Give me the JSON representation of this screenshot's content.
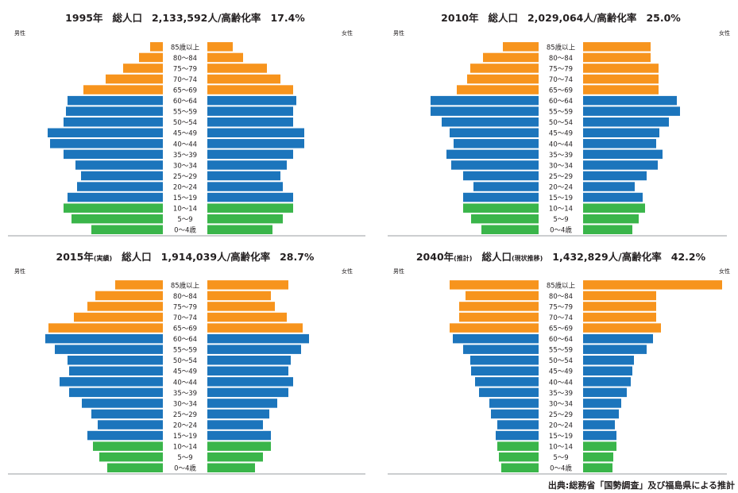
{
  "colors": {
    "elderly": "#f7941d",
    "working": "#1c75bc",
    "youth": "#3ab54a",
    "baseline": "#bcbec0",
    "text": "#231f20"
  },
  "age_groups": [
    "0〜4歳",
    "5〜9",
    "10〜14",
    "15〜19",
    "20〜24",
    "25〜29",
    "30〜34",
    "35〜39",
    "40〜44",
    "45〜49",
    "50〜54",
    "55〜59",
    "60〜64",
    "65〜69",
    "70〜74",
    "75〜79",
    "80〜84",
    "85歳以上"
  ],
  "source": "出典:総務省「国勢調査」及び福島県による推計",
  "chart_data": [
    {
      "type": "bar",
      "title_parts": [
        {
          "text": "1995年",
          "style": "title"
        },
        {
          "text": "総人口",
          "style": "title",
          "gap": 12
        },
        {
          "text": "2,133,592人/高齢化率",
          "style": "title",
          "gap": 12
        },
        {
          "text": "17.4%",
          "style": "title",
          "gap": 12
        }
      ],
      "male_label": "男性",
      "female_label": "女性",
      "categories": [
        "0〜4歳",
        "5〜9",
        "10〜14",
        "15〜19",
        "20〜24",
        "25〜29",
        "30〜34",
        "35〜39",
        "40〜44",
        "45〜49",
        "50〜54",
        "55〜59",
        "60〜64",
        "65〜69",
        "70〜74",
        "75〜79",
        "80〜84",
        "85歳以上"
      ],
      "series": [
        {
          "name": "男性",
          "values": [
            90,
            115,
            125,
            120,
            108,
            103,
            110,
            125,
            142,
            145,
            125,
            122,
            120,
            100,
            72,
            50,
            30,
            16
          ]
        },
        {
          "name": "女性",
          "values": [
            82,
            95,
            108,
            108,
            95,
            92,
            100,
            108,
            122,
            122,
            108,
            108,
            112,
            108,
            92,
            75,
            45,
            32
          ]
        }
      ]
    },
    {
      "type": "bar",
      "title_parts": [
        {
          "text": "2010年",
          "style": "title"
        },
        {
          "text": "総人口",
          "style": "title",
          "gap": 12
        },
        {
          "text": "2,029,064人/高齢化率",
          "style": "title",
          "gap": 12
        },
        {
          "text": "25.0%",
          "style": "title",
          "gap": 12
        }
      ],
      "male_label": "男性",
      "female_label": "女性",
      "categories": [
        "0〜4歳",
        "5〜9",
        "10〜14",
        "15〜19",
        "20〜24",
        "25〜29",
        "30〜34",
        "35〜39",
        "40〜44",
        "45〜49",
        "50〜54",
        "55〜59",
        "60〜64",
        "65〜69",
        "70〜74",
        "75〜79",
        "80〜84",
        "85歳以上"
      ],
      "series": [
        {
          "name": "男性",
          "values": [
            72,
            85,
            95,
            95,
            82,
            95,
            110,
            116,
            107,
            112,
            122,
            136,
            136,
            103,
            90,
            86,
            70,
            45
          ]
        },
        {
          "name": "女性",
          "values": [
            62,
            70,
            78,
            75,
            65,
            80,
            94,
            100,
            92,
            96,
            108,
            122,
            118,
            95,
            95,
            95,
            85,
            85
          ]
        }
      ]
    },
    {
      "type": "bar",
      "title_parts": [
        {
          "text": "2015年",
          "style": "title"
        },
        {
          "text": "(実績)",
          "style": "small"
        },
        {
          "text": "総人口",
          "style": "title",
          "gap": 12
        },
        {
          "text": "1,914,039人/高齢化率",
          "style": "title",
          "gap": 12
        },
        {
          "text": "28.7%",
          "style": "title",
          "gap": 12
        }
      ],
      "male_label": "男性",
      "female_label": "女性",
      "categories": [
        "0〜4歳",
        "5〜9",
        "10〜14",
        "15〜19",
        "20〜24",
        "25〜29",
        "30〜34",
        "35〜39",
        "40〜44",
        "45〜49",
        "50〜54",
        "55〜59",
        "60〜64",
        "65〜69",
        "70〜74",
        "75〜79",
        "80〜84",
        "85歳以上"
      ],
      "series": [
        {
          "name": "男性",
          "values": [
            70,
            80,
            88,
            95,
            82,
            90,
            102,
            118,
            130,
            118,
            120,
            136,
            148,
            144,
            112,
            95,
            85,
            60
          ]
        },
        {
          "name": "女性",
          "values": [
            60,
            70,
            80,
            80,
            70,
            78,
            88,
            102,
            108,
            102,
            105,
            118,
            128,
            120,
            100,
            85,
            80,
            102
          ]
        }
      ]
    },
    {
      "type": "bar",
      "title_parts": [
        {
          "text": "2040年",
          "style": "title"
        },
        {
          "text": "(推計)",
          "style": "small"
        },
        {
          "text": "総人口",
          "style": "title",
          "gap": 12
        },
        {
          "text": "(現状推移)",
          "style": "small"
        },
        {
          "text": "1,432,829人/高齢化率",
          "style": "title",
          "gap": 12
        },
        {
          "text": "42.2%",
          "style": "title",
          "gap": 12
        }
      ],
      "male_label": "男性",
      "female_label": "女性",
      "categories": [
        "0〜4歳",
        "5〜9",
        "10〜14",
        "15〜19",
        "20〜24",
        "25〜29",
        "30〜34",
        "35〜39",
        "40〜44",
        "45〜49",
        "50〜54",
        "55〜59",
        "60〜64",
        "65〜69",
        "70〜74",
        "75〜79",
        "80〜84",
        "85歳以上"
      ],
      "series": [
        {
          "name": "男性",
          "values": [
            47,
            50,
            52,
            54,
            52,
            60,
            62,
            75,
            80,
            85,
            86,
            95,
            108,
            112,
            100,
            100,
            92,
            112
          ]
        },
        {
          "name": "女性",
          "values": [
            37,
            38,
            42,
            42,
            40,
            45,
            48,
            55,
            60,
            62,
            64,
            80,
            88,
            98,
            92,
            92,
            92,
            175
          ]
        }
      ]
    }
  ]
}
